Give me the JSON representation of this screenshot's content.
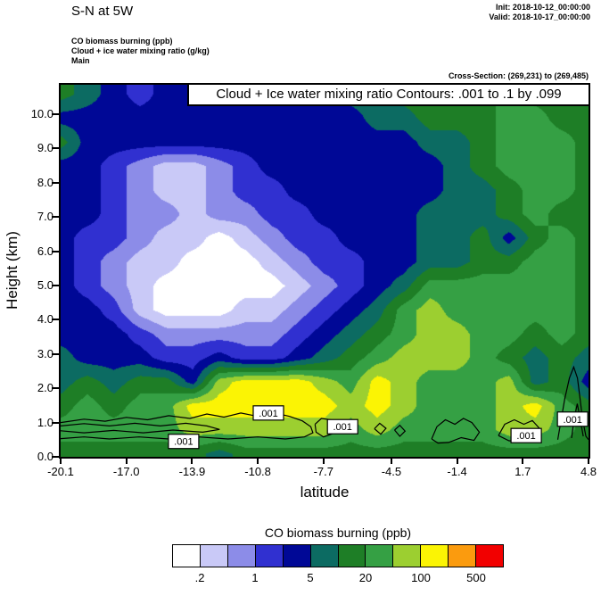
{
  "header": {
    "title": "S-N at 5W",
    "init": "Init: 2018-10-12_00:00:00",
    "valid": "Valid: 2018-10-17_00:00:00",
    "var1": "CO biomass burning   (ppb)",
    "var2": "Cloud + ice water mixing ratio   (g/kg)",
    "var3": "Main",
    "cross_section": "Cross-Section: (269,231) to (269,485)"
  },
  "plot": {
    "banner": "Cloud + Ice water mixing ratio Contours: .001 to .1 by .099",
    "xlabel": "latitude",
    "ylabel": "Height (km)"
  },
  "colorbar": {
    "title": "CO biomass burning  (ppb)",
    "labels": [
      ".2",
      "1",
      "5",
      "20",
      "100",
      "500"
    ],
    "colors": [
      "#ffffff",
      "#c9c9f7",
      "#8c8ce8",
      "#3030d0",
      "#000896",
      "#0c6b62",
      "#1e7e26",
      "#35a044",
      "#9ccf30",
      "#fbf404",
      "#fb9b0e",
      "#f20000"
    ]
  },
  "chart_data": {
    "type": "heatmap",
    "title": "S-N at 5W",
    "field": "CO biomass burning (ppb)",
    "overlay_field": "Cloud + ice water mixing ratio (g/kg)",
    "xlabel": "latitude",
    "ylabel": "Height (km)",
    "xlim": [
      -20.1,
      4.8
    ],
    "ylim": [
      0,
      10.86
    ],
    "x_ticks": [
      "-20.1",
      "-17.0",
      "-13.9",
      "-10.8",
      "-7.7",
      "-4.5",
      "-1.4",
      "1.7",
      "4.8"
    ],
    "y_ticks": [
      "0.0",
      "1.0",
      "2.0",
      "3.0",
      "4.0",
      "5.0",
      "6.0",
      "7.0",
      "8.0",
      "9.0",
      "10.0"
    ],
    "levels_ppb": [
      0.2,
      0.5,
      1,
      2,
      5,
      10,
      20,
      50,
      100,
      200,
      500
    ],
    "palette": [
      "#ffffff",
      "#c9c9f7",
      "#8c8ce8",
      "#3030d0",
      "#000896",
      "#0c6b62",
      "#1e7e26",
      "#35a044",
      "#9ccf30",
      "#fbf404",
      "#fb9b0e",
      "#f20000"
    ],
    "grid_heights": {
      "top": 10.6,
      "bottom": 0.1
    },
    "grid": [
      "654344444445566567665",
      "444444444444556667766",
      "644444444444445567776",
      "443211234444444567776",
      "443211233444444556776",
      "443221223344445556766",
      "433211012334445564676",
      "432110001233445566776",
      "432100000123457777776",
      "443100011234578777776",
      "444322222345678877676",
      "544433433456788876565",
      "565664899987987778564",
      "676779999998987778976",
      "777778888887877778876",
      "666666566666666666666"
    ],
    "cloud_contours": {
      "info": "Cloud + Ice water mixing ratio Contours: .001 to .1 by .099",
      "values": [
        0.001,
        0.1
      ],
      "label": ".001",
      "label_points": [
        [
          -14.3,
          0.45
        ],
        [
          -10.3,
          1.28
        ],
        [
          -6.8,
          0.88
        ],
        [
          1.86,
          0.62
        ],
        [
          4.05,
          1.1
        ]
      ],
      "polylines": [
        [
          [
            -20.1,
            1.0
          ],
          [
            -19.0,
            1.1
          ],
          [
            -18.0,
            1.04
          ],
          [
            -17.0,
            1.15
          ],
          [
            -16.0,
            1.08
          ],
          [
            -15.0,
            1.2
          ],
          [
            -14.0,
            1.12
          ],
          [
            -13.2,
            1.25
          ],
          [
            -12.4,
            1.16
          ],
          [
            -11.6,
            1.28
          ],
          [
            -10.8,
            1.18
          ],
          [
            -10.0,
            1.28
          ],
          [
            -9.3,
            1.18
          ],
          [
            -8.7,
            1.05
          ],
          [
            -8.3,
            0.88
          ],
          [
            -8.2,
            0.7
          ],
          [
            -8.6,
            0.58
          ],
          [
            -9.5,
            0.52
          ],
          [
            -10.8,
            0.58
          ],
          [
            -12.2,
            0.52
          ],
          [
            -13.6,
            0.58
          ],
          [
            -15.0,
            0.52
          ],
          [
            -16.4,
            0.58
          ],
          [
            -17.8,
            0.52
          ],
          [
            -19.0,
            0.58
          ],
          [
            -20.1,
            0.53
          ]
        ],
        [
          [
            -20.1,
            0.9
          ],
          [
            -19.0,
            0.97
          ],
          [
            -17.8,
            0.9
          ],
          [
            -16.6,
            0.98
          ],
          [
            -15.4,
            0.9
          ],
          [
            -14.2,
            0.98
          ],
          [
            -13.2,
            0.9
          ],
          [
            -12.6,
            0.8
          ],
          [
            -13.4,
            0.72
          ],
          [
            -14.8,
            0.78
          ],
          [
            -16.2,
            0.7
          ],
          [
            -17.6,
            0.77
          ],
          [
            -19.0,
            0.7
          ],
          [
            -20.1,
            0.76
          ]
        ],
        [
          [
            -8.1,
            0.95
          ],
          [
            -7.8,
            1.12
          ],
          [
            -7.35,
            1.08
          ],
          [
            -7.1,
            0.9
          ],
          [
            -7.25,
            0.68
          ],
          [
            -7.7,
            0.58
          ],
          [
            -8.05,
            0.72
          ],
          [
            -8.1,
            0.95
          ]
        ],
        [
          [
            -5.3,
            0.82
          ],
          [
            -5.05,
            0.98
          ],
          [
            -4.75,
            0.83
          ],
          [
            -5.0,
            0.66
          ],
          [
            -5.3,
            0.82
          ]
        ],
        [
          [
            -4.35,
            0.78
          ],
          [
            -4.1,
            0.92
          ],
          [
            -3.85,
            0.75
          ],
          [
            -4.1,
            0.6
          ],
          [
            -4.35,
            0.78
          ]
        ],
        [
          [
            -2.6,
            0.52
          ],
          [
            -2.35,
            0.88
          ],
          [
            -1.95,
            1.08
          ],
          [
            -1.5,
            0.95
          ],
          [
            -1.1,
            1.12
          ],
          [
            -0.7,
            1.0
          ],
          [
            -0.35,
            0.72
          ],
          [
            -0.6,
            0.48
          ],
          [
            -1.2,
            0.56
          ],
          [
            -1.8,
            0.42
          ],
          [
            -2.3,
            0.4
          ],
          [
            -2.6,
            0.52
          ]
        ],
        [
          [
            0.55,
            0.62
          ],
          [
            0.85,
            0.95
          ],
          [
            1.3,
            1.08
          ],
          [
            1.75,
            0.95
          ],
          [
            2.15,
            1.06
          ],
          [
            2.5,
            0.82
          ],
          [
            2.3,
            0.55
          ],
          [
            1.7,
            0.44
          ],
          [
            1.05,
            0.47
          ],
          [
            0.55,
            0.62
          ]
        ],
        [
          [
            3.35,
            0.5
          ],
          [
            3.5,
            1.05
          ],
          [
            3.68,
            1.7
          ],
          [
            3.9,
            2.3
          ],
          [
            4.1,
            2.62
          ],
          [
            4.28,
            2.3
          ],
          [
            4.4,
            1.7
          ],
          [
            4.52,
            1.1
          ],
          [
            4.68,
            0.6
          ],
          [
            4.8,
            0.5
          ]
        ],
        [
          [
            4.0,
            0.55
          ],
          [
            4.12,
            1.1
          ],
          [
            4.27,
            1.55
          ],
          [
            4.42,
            1.05
          ],
          [
            4.55,
            0.6
          ]
        ]
      ]
    }
  }
}
